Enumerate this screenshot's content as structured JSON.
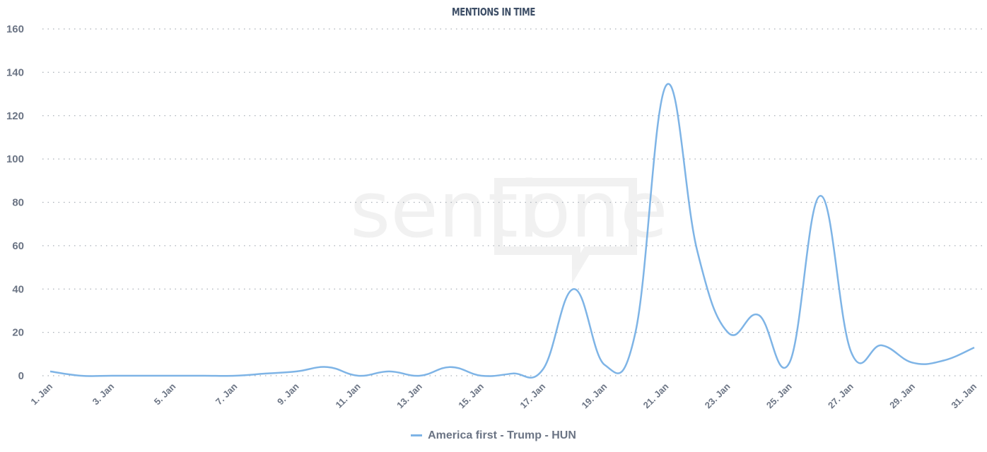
{
  "chart_data": {
    "type": "line",
    "title": "MENTIONS IN TIME",
    "xlabel": "",
    "ylabel": "",
    "ylim": [
      0,
      160
    ],
    "yticks": [
      0,
      20,
      40,
      60,
      80,
      100,
      120,
      140,
      160
    ],
    "x": [
      "1. Jan",
      "2. Jan",
      "3. Jan",
      "4. Jan",
      "5. Jan",
      "6. Jan",
      "7. Jan",
      "8. Jan",
      "9. Jan",
      "10. Jan",
      "11. Jan",
      "12. Jan",
      "13. Jan",
      "14. Jan",
      "15. Jan",
      "16. Jan",
      "17. Jan",
      "18. Jan",
      "19. Jan",
      "20. Jan",
      "21. Jan",
      "22. Jan",
      "23. Jan",
      "24. Jan",
      "25. Jan",
      "26. Jan",
      "27. Jan",
      "28. Jan",
      "29. Jan",
      "30. Jan",
      "31. Jan"
    ],
    "xtick_labels": [
      "1. Jan",
      "3. Jan",
      "5. Jan",
      "7. Jan",
      "9. Jan",
      "11. Jan",
      "13. Jan",
      "15. Jan",
      "17. Jan",
      "19. Jan",
      "21. Jan",
      "23. Jan",
      "25. Jan",
      "27. Jan",
      "29. Jan",
      "31. Jan"
    ],
    "grid": true,
    "legend": "bottom-center",
    "series": [
      {
        "name": "America first - Trump - HUN",
        "color": "#7eb4e6",
        "values": [
          2,
          0,
          0,
          0,
          0,
          0,
          0,
          1,
          2,
          4,
          0,
          2,
          0,
          4,
          0,
          1,
          3,
          40,
          5,
          20,
          134,
          58,
          20,
          28,
          6,
          83,
          11,
          14,
          6,
          7,
          13
        ]
      }
    ]
  },
  "watermark": "sentione"
}
